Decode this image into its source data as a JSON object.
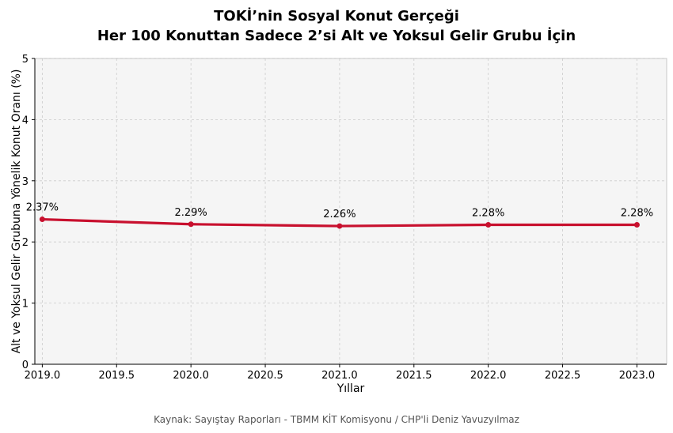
{
  "chart_data": {
    "type": "line",
    "title": "TOKİ’nin Sosyal Konut Gerçeği",
    "subtitle": "Her 100 Konuttan Sadece 2’si Alt ve Yoksul Gelir Grubu İçin",
    "xlabel": "Yıllar",
    "ylabel": "Alt ve Yoksul Gelir Grubuna Yönelik Konut Oranı (%)",
    "xlim": [
      2018.95,
      2023.2
    ],
    "ylim": [
      0,
      5
    ],
    "x_ticks": [
      "2019.0",
      "2019.5",
      "2020.0",
      "2020.5",
      "2021.0",
      "2021.5",
      "2022.0",
      "2022.5",
      "2023.0"
    ],
    "y_ticks": [
      "0",
      "1",
      "2",
      "3",
      "4",
      "5"
    ],
    "grid": true,
    "series": [
      {
        "x": [
          2019,
          2020,
          2021,
          2022,
          2023
        ],
        "y": [
          2.37,
          2.29,
          2.26,
          2.28,
          2.28
        ],
        "labels": [
          "2.37%",
          "2.29%",
          "2.26%",
          "2.28%",
          "2.28%"
        ],
        "color": "#c8102e"
      }
    ]
  },
  "footer": {
    "source": "Kaynak: Sayıştay Raporları - TBMM KİT Komisyonu / CHP'li Deniz Yavuzyılmaz"
  }
}
